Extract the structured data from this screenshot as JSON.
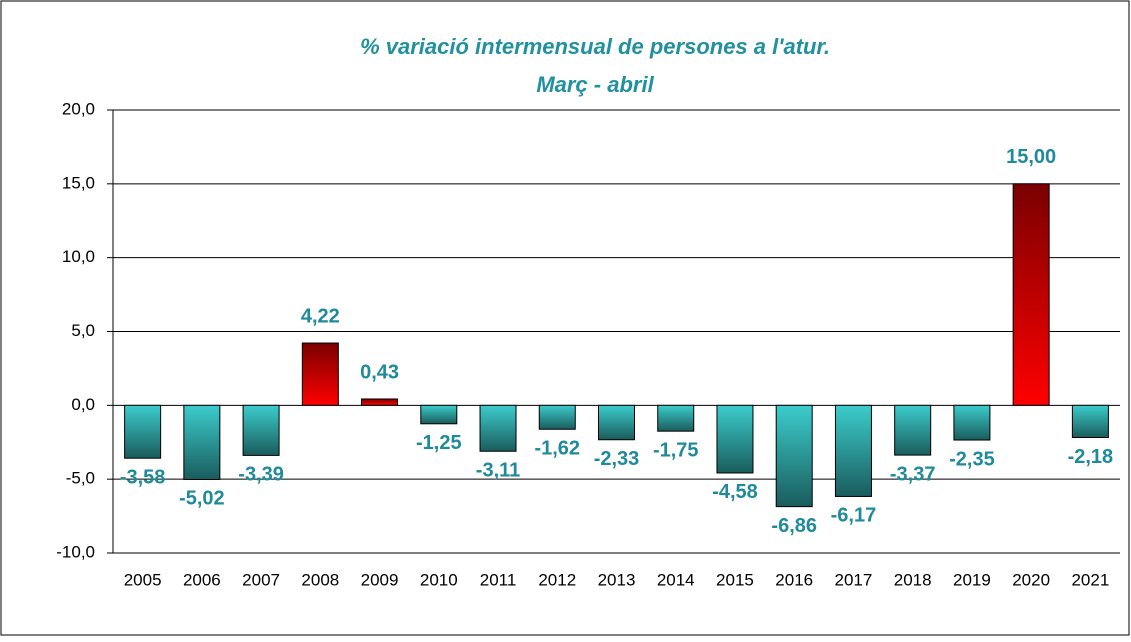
{
  "chart_data": {
    "type": "bar",
    "title": "% variació intermensual de persones a l'atur.",
    "subtitle": "Març - abril",
    "categories": [
      "2005",
      "2006",
      "2007",
      "2008",
      "2009",
      "2010",
      "2011",
      "2012",
      "2013",
      "2014",
      "2015",
      "2016",
      "2017",
      "2018",
      "2019",
      "2020",
      "2021"
    ],
    "values": [
      -3.58,
      -5.02,
      -3.39,
      4.22,
      0.43,
      -1.25,
      -3.11,
      -1.62,
      -2.33,
      -1.75,
      -4.58,
      -6.86,
      -6.17,
      -3.37,
      -2.35,
      15.0,
      -2.18
    ],
    "value_labels": [
      "-3,58",
      "-5,02",
      "-3,39",
      "4,22",
      "0,43",
      "-1,25",
      "-3,11",
      "-1,62",
      "-2,33",
      "-1,75",
      "-4,58",
      "-6,86",
      "-6,17",
      "-3,37",
      "-2,35",
      "15,00",
      "-2,18"
    ],
    "color_positive": [
      "#7a0000",
      "#ff0000"
    ],
    "color_negative": [
      "#3ccccc",
      "#1a5c5c"
    ],
    "ylim": [
      -10,
      20
    ],
    "yticks": [
      {
        "value": -10,
        "label": "-10,0"
      },
      {
        "value": -5,
        "label": "-5,0"
      },
      {
        "value": 0,
        "label": "0,0"
      },
      {
        "value": 5,
        "label": "5,0"
      },
      {
        "value": 10,
        "label": "10,0"
      },
      {
        "value": 15,
        "label": "15,0"
      },
      {
        "value": 20,
        "label": "20,0"
      }
    ],
    "grid": true
  }
}
